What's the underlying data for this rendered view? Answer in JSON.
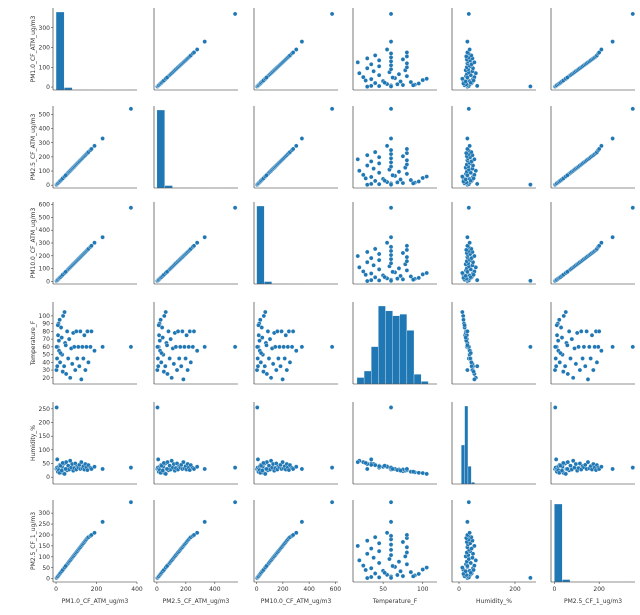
{
  "chart_data": {
    "type": "scatter",
    "title": "",
    "grid": false,
    "colors": {
      "marker": "#1f77b4",
      "marker_edge": "#ffffff",
      "axis": "#222222"
    },
    "variables": [
      {
        "key": "pm1",
        "label": "PM1.0_CF_ATM_ug/m3",
        "range": [
          -15,
          400
        ],
        "ticks": [
          0,
          200,
          400
        ],
        "ytick_labels": [
          "0",
          "100",
          "200",
          "300"
        ],
        "ytick_values": [
          0,
          100,
          200,
          300
        ]
      },
      {
        "key": "pm25",
        "label": "PM2.5_CF_ATM_ug/m3",
        "range": [
          -20,
          560
        ],
        "ticks": [
          0,
          200,
          400
        ],
        "ytick_labels": [
          "0",
          "100",
          "200",
          "300",
          "400",
          "500"
        ],
        "ytick_values": [
          0,
          100,
          200,
          300,
          400,
          500
        ]
      },
      {
        "key": "pm10",
        "label": "PM10.0_CF_ATM_ug/m3",
        "range": [
          -20,
          620
        ],
        "ticks": [
          0,
          200,
          400,
          600
        ],
        "ytick_labels": [
          "0",
          "100",
          "200",
          "300",
          "400",
          "500",
          "600"
        ],
        "ytick_values": [
          0,
          100,
          200,
          300,
          400,
          500,
          600
        ]
      },
      {
        "key": "temp",
        "label": "Temperature_F",
        "range": [
          12,
          118
        ],
        "ticks": [
          50,
          100
        ],
        "ytick_labels": [
          "20",
          "30",
          "40",
          "50",
          "60",
          "70",
          "80",
          "90",
          "100"
        ],
        "ytick_values": [
          20,
          30,
          40,
          50,
          60,
          70,
          80,
          90,
          100
        ]
      },
      {
        "key": "hum",
        "label": "Humidity_%",
        "range": [
          -25,
          275
        ],
        "ticks": [
          0,
          200
        ],
        "ytick_labels": [
          "0",
          "50",
          "100",
          "150",
          "200",
          "250"
        ],
        "ytick_values": [
          0,
          50,
          100,
          150,
          200,
          250
        ]
      },
      {
        "key": "pm25cf1",
        "label": "PM2.5_CF_1_ug/m3",
        "range": [
          -15,
          360
        ],
        "ticks": [
          0,
          200
        ],
        "ytick_labels": [
          "0",
          "50",
          "100",
          "150",
          "200",
          "250",
          "300"
        ],
        "ytick_values": [
          0,
          50,
          100,
          150,
          200,
          250,
          300
        ]
      }
    ],
    "histograms": [
      {
        "var": "pm1",
        "bin_edges": [
          0,
          40,
          80,
          120,
          160,
          200,
          240,
          280,
          320,
          360,
          400
        ],
        "counts": [
          1900,
          60,
          8,
          3,
          1,
          1,
          0,
          0,
          0,
          1
        ]
      },
      {
        "var": "pm25",
        "bin_edges": [
          0,
          54,
          108,
          162,
          216,
          270,
          324,
          378,
          432,
          486,
          540
        ],
        "counts": [
          1900,
          60,
          8,
          3,
          1,
          1,
          0,
          0,
          0,
          1
        ]
      },
      {
        "var": "pm10",
        "bin_edges": [
          0,
          58,
          116,
          174,
          232,
          290,
          348,
          406,
          464,
          522,
          580
        ],
        "counts": [
          1900,
          60,
          8,
          3,
          1,
          1,
          0,
          0,
          0,
          1
        ]
      },
      {
        "var": "temp",
        "bin_edges": [
          17,
          26,
          35,
          44,
          53,
          62,
          71,
          80,
          89,
          98,
          107
        ],
        "counts": [
          20,
          40,
          115,
          240,
          225,
          210,
          215,
          165,
          30,
          8
        ]
      },
      {
        "var": "hum",
        "bin_edges": [
          8,
          20,
          32,
          44,
          56,
          68,
          80,
          92,
          104,
          116,
          128
        ],
        "counts": [
          110,
          220,
          50,
          5,
          0,
          0,
          0,
          0,
          0,
          0
        ]
      },
      {
        "var": "pm25cf1",
        "bin_edges": [
          0,
          35,
          70,
          105,
          140,
          175,
          210,
          245,
          280,
          315,
          350
        ],
        "counts": [
          1900,
          60,
          8,
          3,
          1,
          1,
          0,
          0,
          0,
          1
        ]
      }
    ],
    "records": [
      {
        "pm1": 2,
        "pm25": 3,
        "pm10": 3,
        "temp": 30,
        "hum": 30,
        "pm25cf1": 3
      },
      {
        "pm1": 5,
        "pm25": 7,
        "pm10": 8,
        "temp": 45,
        "hum": 35,
        "pm25cf1": 6
      },
      {
        "pm1": 8,
        "pm25": 12,
        "pm10": 13,
        "temp": 60,
        "hum": 28,
        "pm25cf1": 10
      },
      {
        "pm1": 10,
        "pm25": 15,
        "pm10": 16,
        "temp": 75,
        "hum": 22,
        "pm25cf1": 12
      },
      {
        "pm1": 12,
        "pm25": 18,
        "pm10": 20,
        "temp": 90,
        "hum": 18,
        "pm25cf1": 15
      },
      {
        "pm1": 15,
        "pm25": 22,
        "pm10": 24,
        "temp": 55,
        "hum": 40,
        "pm25cf1": 18
      },
      {
        "pm1": 20,
        "pm25": 30,
        "pm10": 32,
        "temp": 40,
        "hum": 45,
        "pm25cf1": 24
      },
      {
        "pm1": 25,
        "pm25": 36,
        "pm10": 39,
        "temp": 85,
        "hum": 20,
        "pm25cf1": 30
      },
      {
        "pm1": 30,
        "pm25": 44,
        "pm10": 47,
        "temp": 50,
        "hum": 38,
        "pm25cf1": 36
      },
      {
        "pm1": 35,
        "pm25": 51,
        "pm10": 55,
        "temp": 100,
        "hum": 15,
        "pm25cf1": 42
      },
      {
        "pm1": 40,
        "pm25": 58,
        "pm10": 62,
        "temp": 35,
        "hum": 50,
        "pm25cf1": 48
      },
      {
        "pm1": 45,
        "pm25": 66,
        "pm10": 71,
        "temp": 65,
        "hum": 30,
        "pm25cf1": 54
      },
      {
        "pm1": 50,
        "pm25": 73,
        "pm10": 78,
        "temp": 25,
        "hum": 55,
        "pm25cf1": 60
      },
      {
        "pm1": 55,
        "pm25": 80,
        "pm10": 86,
        "temp": 80,
        "hum": 25,
        "pm25cf1": 66
      },
      {
        "pm1": 60,
        "pm25": 88,
        "pm10": 94,
        "temp": 45,
        "hum": 42,
        "pm25cf1": 72
      },
      {
        "pm1": 65,
        "pm25": 95,
        "pm10": 102,
        "temp": 70,
        "hum": 28,
        "pm25cf1": 78
      },
      {
        "pm1": 70,
        "pm25": 102,
        "pm10": 110,
        "temp": 20,
        "hum": 60,
        "pm25cf1": 84
      },
      {
        "pm1": 75,
        "pm25": 110,
        "pm10": 118,
        "temp": 58,
        "hum": 35,
        "pm25cf1": 90
      },
      {
        "pm1": 80,
        "pm25": 117,
        "pm10": 126,
        "temp": 38,
        "hum": 48,
        "pm25cf1": 96
      },
      {
        "pm1": 85,
        "pm25": 124,
        "pm10": 134,
        "temp": 78,
        "hum": 24,
        "pm25cf1": 102
      },
      {
        "pm1": 90,
        "pm25": 131,
        "pm10": 142,
        "temp": 60,
        "hum": 33,
        "pm25cf1": 108
      },
      {
        "pm1": 95,
        "pm25": 139,
        "pm10": 150,
        "temp": 30,
        "hum": 50,
        "pm25cf1": 114
      },
      {
        "pm1": 100,
        "pm25": 146,
        "pm10": 158,
        "temp": 80,
        "hum": 28,
        "pm25cf1": 120
      },
      {
        "pm1": 105,
        "pm25": 154,
        "pm10": 166,
        "temp": 45,
        "hum": 40,
        "pm25cf1": 126
      },
      {
        "pm1": 110,
        "pm25": 161,
        "pm10": 174,
        "temp": 60,
        "hum": 36,
        "pm25cf1": 132
      },
      {
        "pm1": 115,
        "pm25": 168,
        "pm10": 182,
        "temp": 35,
        "hum": 45,
        "pm25cf1": 138
      },
      {
        "pm1": 120,
        "pm25": 176,
        "pm10": 190,
        "temp": 80,
        "hum": 30,
        "pm25cf1": 144
      },
      {
        "pm1": 125,
        "pm25": 183,
        "pm10": 198,
        "temp": 18,
        "hum": 55,
        "pm25cf1": 150
      },
      {
        "pm1": 130,
        "pm25": 190,
        "pm10": 206,
        "temp": 60,
        "hum": 32,
        "pm25cf1": 156
      },
      {
        "pm1": 135,
        "pm25": 198,
        "pm10": 214,
        "temp": 45,
        "hum": 40,
        "pm25cf1": 162
      },
      {
        "pm1": 140,
        "pm25": 205,
        "pm10": 222,
        "temp": 75,
        "hum": 28,
        "pm25cf1": 168
      },
      {
        "pm1": 145,
        "pm25": 212,
        "pm10": 230,
        "temp": 30,
        "hum": 48,
        "pm25cf1": 174
      },
      {
        "pm1": 150,
        "pm25": 220,
        "pm10": 238,
        "temp": 60,
        "hum": 35,
        "pm25cf1": 180
      },
      {
        "pm1": 155,
        "pm25": 227,
        "pm10": 246,
        "temp": 80,
        "hum": 26,
        "pm25cf1": 186
      },
      {
        "pm1": 160,
        "pm25": 234,
        "pm10": 254,
        "temp": 40,
        "hum": 44,
        "pm25cf1": 190
      },
      {
        "pm1": 170,
        "pm25": 248,
        "pm10": 270,
        "temp": 60,
        "hum": 34,
        "pm25cf1": 196
      },
      {
        "pm1": 175,
        "pm25": 256,
        "pm10": 278,
        "temp": 80,
        "hum": 30,
        "pm25cf1": 200
      },
      {
        "pm1": 190,
        "pm25": 278,
        "pm10": 302,
        "temp": 55,
        "hum": 38,
        "pm25cf1": 210
      },
      {
        "pm1": 230,
        "pm25": 330,
        "pm10": 345,
        "temp": 60,
        "hum": 30,
        "pm25cf1": 260
      },
      {
        "pm1": 370,
        "pm25": 540,
        "pm10": 575,
        "temp": 60,
        "hum": 35,
        "pm25cf1": 350
      },
      {
        "pm1": 3,
        "pm25": 4,
        "pm10": 5,
        "temp": 60,
        "hum": 255,
        "pm25cf1": 4
      },
      {
        "pm1": 6,
        "pm25": 9,
        "pm10": 10,
        "temp": 35,
        "hum": 65,
        "pm25cf1": 8
      },
      {
        "pm1": 9,
        "pm25": 13,
        "pm10": 14,
        "temp": 88,
        "hum": 20,
        "pm25cf1": 11
      },
      {
        "pm1": 14,
        "pm25": 20,
        "pm10": 22,
        "temp": 68,
        "hum": 26,
        "pm25cf1": 17
      },
      {
        "pm1": 18,
        "pm25": 26,
        "pm10": 28,
        "temp": 95,
        "hum": 16,
        "pm25cf1": 22
      },
      {
        "pm1": 22,
        "pm25": 32,
        "pm10": 34,
        "temp": 52,
        "hum": 42,
        "pm25cf1": 27
      },
      {
        "pm1": 28,
        "pm25": 40,
        "pm10": 43,
        "temp": 72,
        "hum": 24,
        "pm25cf1": 34
      },
      {
        "pm1": 33,
        "pm25": 48,
        "pm10": 52,
        "temp": 28,
        "hum": 52,
        "pm25cf1": 40
      },
      {
        "pm1": 42,
        "pm25": 61,
        "pm10": 66,
        "temp": 105,
        "hum": 12,
        "pm25cf1": 51
      },
      {
        "pm1": 48,
        "pm25": 70,
        "pm10": 75,
        "temp": 62,
        "hum": 30,
        "pm25cf1": 58
      }
    ]
  }
}
